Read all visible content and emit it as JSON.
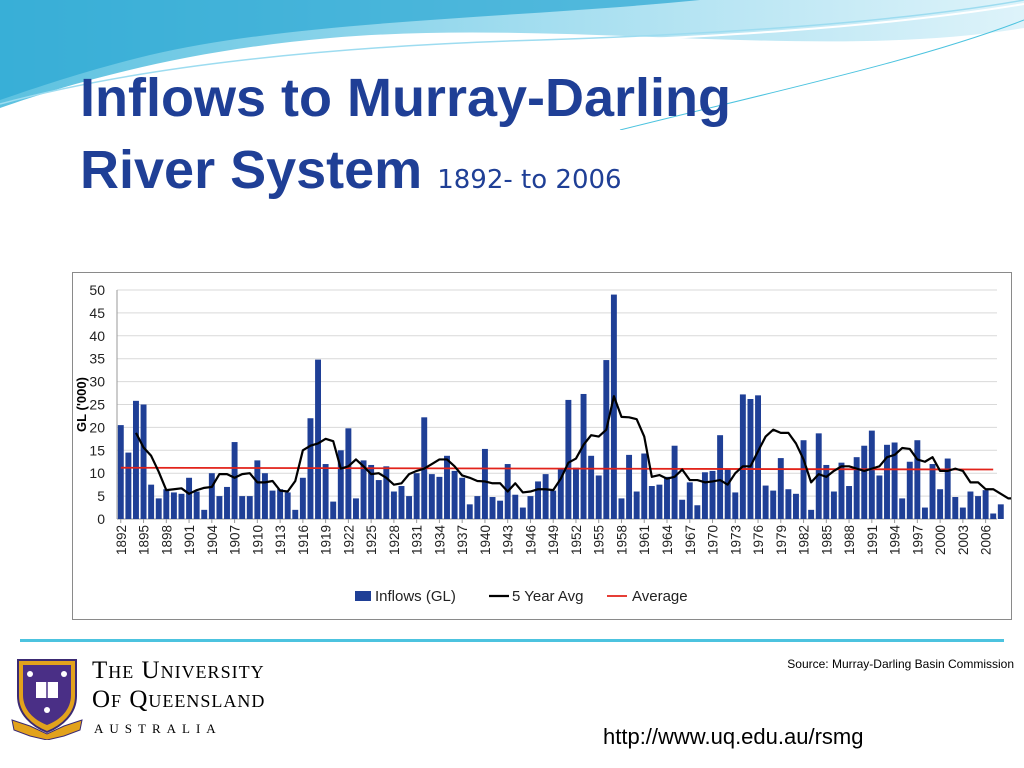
{
  "slide": {
    "title_line1": "Inflows to Murray-Darling",
    "title_line2": "River System",
    "subtitle": "1892- to 2006",
    "source": "Source: Murray-Darling Basin Commission",
    "url": "http://www.uq.edu.au/rsmg",
    "university_line1": "The University",
    "university_line2": "Of Queensland",
    "country": "AUSTRALIA",
    "colors": {
      "title": "#1f3f96",
      "bars": "#1f3f96",
      "avg_line": "#e2231a",
      "accent": "#4cc3df"
    }
  },
  "chart_data": {
    "type": "bar",
    "ylabel": "GL ('000)",
    "xlabel": "",
    "ylim": [
      0,
      50
    ],
    "yticks": [
      0,
      5,
      10,
      15,
      20,
      25,
      30,
      35,
      40,
      45,
      50
    ],
    "grid": true,
    "legend_position": "bottom",
    "x_start": 1892,
    "x_end": 2007,
    "xticks": [
      1892,
      1895,
      1898,
      1901,
      1904,
      1907,
      1910,
      1913,
      1916,
      1919,
      1922,
      1925,
      1928,
      1931,
      1934,
      1937,
      1940,
      1943,
      1946,
      1949,
      1952,
      1955,
      1958,
      1961,
      1964,
      1967,
      1970,
      1973,
      1976,
      1979,
      1982,
      1985,
      1988,
      1991,
      1994,
      1997,
      2000,
      2003,
      2006
    ],
    "series": [
      {
        "name": "Inflows (GL)",
        "type": "bar",
        "values": [
          20.5,
          14.5,
          25.8,
          25,
          7.5,
          4.5,
          6.5,
          5.8,
          5.5,
          9,
          6,
          2,
          10,
          5,
          7,
          16.8,
          5,
          5,
          12.8,
          10,
          6.2,
          6.5,
          5.8,
          2,
          9,
          22,
          34.8,
          12,
          3.8,
          15,
          19.8,
          4.5,
          12.8,
          11.8,
          8.5,
          11.5,
          6,
          7.2,
          5,
          10,
          22.2,
          9.8,
          9.2,
          13.8,
          10.5,
          9,
          3.2,
          5,
          15.3,
          4.8,
          4,
          12,
          5.3,
          2.5,
          5,
          8.2,
          9.8,
          6.2,
          11,
          26,
          11.2,
          27.3,
          13.8,
          9.5,
          34.7,
          49,
          4.5,
          14,
          6,
          14.3,
          7.2,
          7.5,
          9.2,
          16,
          4.2,
          8,
          3,
          10.2,
          10.5,
          18.3,
          10.8,
          5.8,
          27.2,
          26.2,
          27,
          7.3,
          6.2,
          13.3,
          6.5,
          5.5,
          17.2,
          2,
          18.7,
          11.8,
          6,
          12.3,
          7.2,
          13.5,
          16,
          19.3,
          9.5,
          16.2,
          16.7,
          4.5,
          12.5,
          17.2,
          2.5,
          12,
          6.5,
          13.2,
          4.8,
          2.5,
          6,
          5,
          6.3,
          1.2,
          3.2
        ]
      },
      {
        "name": "5 Year Avg",
        "type": "line",
        "start_year": 1894,
        "values": [
          18.8,
          15.6,
          13.8,
          10.3,
          6.3,
          6.5,
          6.7,
          5.5,
          6.3,
          6.8,
          7,
          9.8,
          9.8,
          9,
          9.8,
          10,
          8,
          8,
          8.3,
          6.2,
          6,
          8.3,
          15,
          16,
          16.5,
          17.5,
          17,
          11,
          11.5,
          13,
          11.5,
          9.8,
          10,
          9,
          7.5,
          7.8,
          9.8,
          10.5,
          11,
          12,
          13,
          13,
          11.5,
          9.5,
          9,
          8.3,
          8.2,
          7.8,
          7.8,
          6,
          7.8,
          5.8,
          6,
          6.5,
          6.5,
          6.3,
          8.8,
          12.3,
          13.2,
          16.2,
          18.3,
          18,
          19.5,
          26.8,
          22.3,
          22.2,
          21.8,
          18,
          9.2,
          9.6,
          8.8,
          9.2,
          10.8,
          8.5,
          8.5,
          8,
          8.2,
          8.5,
          7.5,
          10,
          11.5,
          11.5,
          14.8,
          18,
          19.5,
          18.8,
          18.8,
          16.5,
          13,
          8,
          9.8,
          9.2,
          10.5,
          11.5,
          11.5,
          11,
          10.5,
          11,
          11.5,
          13.5,
          14,
          15.5,
          15.3,
          13,
          12.5,
          13.5,
          10.5,
          10.5,
          11,
          10.5,
          8,
          8,
          6.5,
          6.5,
          5.5,
          4.5,
          4.5
        ]
      },
      {
        "name": "Average",
        "type": "line",
        "value": 11.2,
        "end_value": 10.8
      }
    ]
  }
}
